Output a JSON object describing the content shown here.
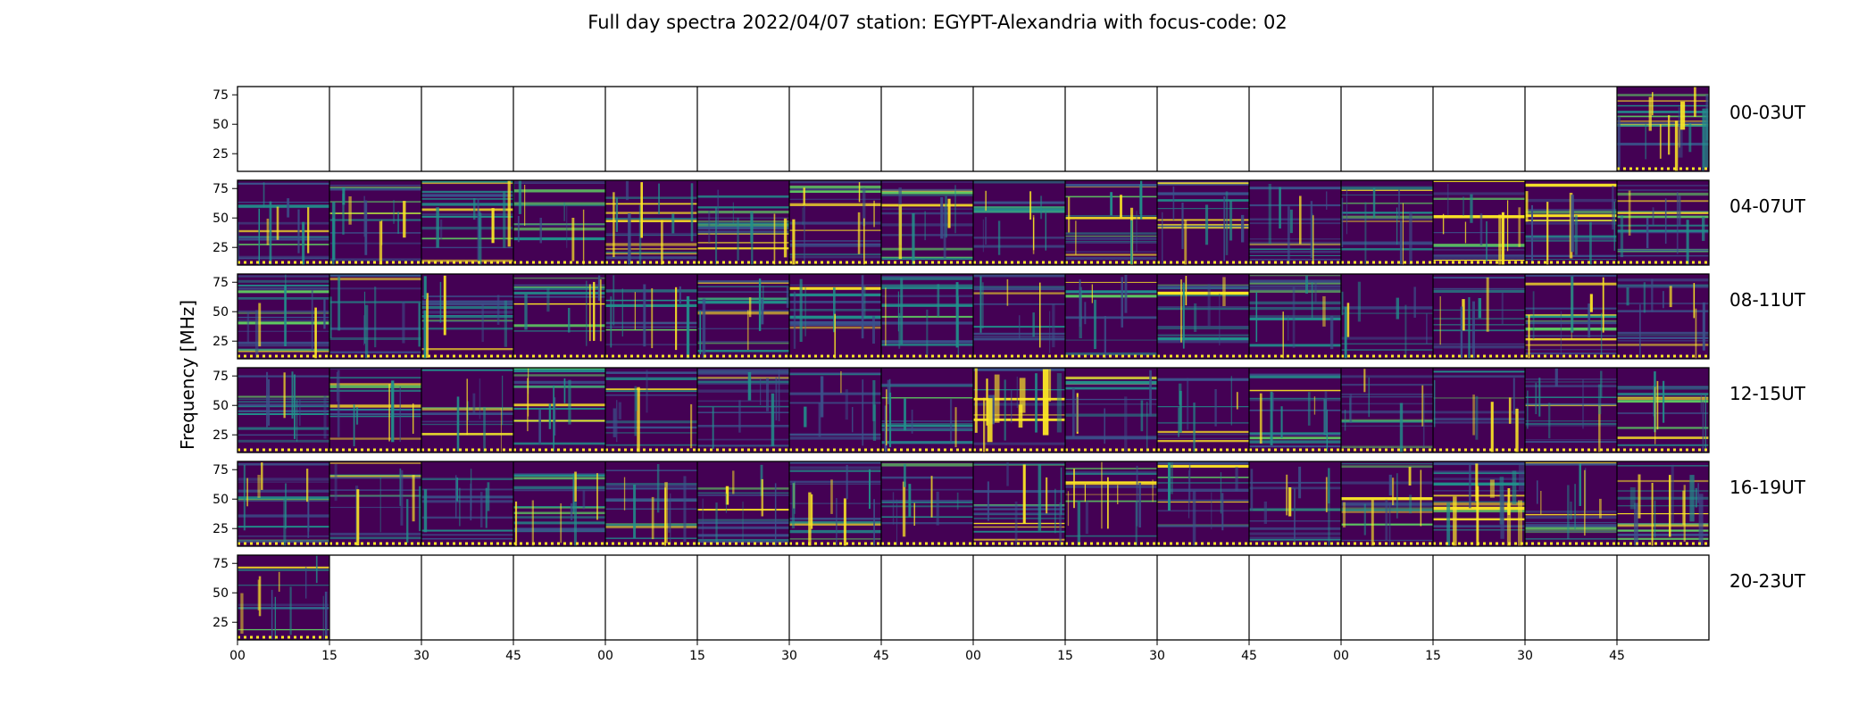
{
  "chart_data": {
    "type": "heatmap",
    "title": "Full day spectra 2022/04/07 station: EGYPT-Alexandria with focus-code: 02",
    "ylabel": "Frequency [MHz]",
    "xlabel": "",
    "y_ticks": [
      "25",
      "50",
      "75"
    ],
    "y_tick_values": [
      25,
      50,
      75
    ],
    "ylim": [
      10,
      82
    ],
    "x_ticks": [
      "00",
      "15",
      "30",
      "45",
      "00",
      "15",
      "30",
      "45",
      "00",
      "15",
      "30",
      "45",
      "00",
      "15",
      "30",
      "45"
    ],
    "x_range_minutes": [
      0,
      240
    ],
    "columns_per_row": 16,
    "column_minutes": 15,
    "colormap": [
      "#440154",
      "#3b528b",
      "#21918c",
      "#5ec962",
      "#fde725"
    ],
    "rows": [
      {
        "label": "00-03UT",
        "panels": [
          0,
          0,
          0,
          0,
          0,
          0,
          0,
          0,
          0,
          0,
          0,
          0,
          0,
          0,
          0,
          1
        ],
        "intensity": [
          0,
          0,
          0,
          0,
          0,
          0,
          0,
          0,
          0,
          0,
          0,
          0,
          0,
          0,
          0,
          0.6
        ]
      },
      {
        "label": "04-07UT",
        "panels": [
          1,
          1,
          1,
          1,
          1,
          1,
          1,
          1,
          1,
          1,
          1,
          1,
          1,
          1,
          1,
          1
        ],
        "intensity": [
          0.35,
          0.45,
          0.3,
          0.3,
          0.35,
          0.3,
          0.3,
          0.25,
          0.3,
          0.3,
          0.25,
          0.25,
          0.25,
          0.4,
          0.3,
          0.25
        ]
      },
      {
        "label": "08-11UT",
        "panels": [
          1,
          1,
          1,
          1,
          1,
          1,
          1,
          1,
          1,
          1,
          1,
          1,
          1,
          1,
          1,
          1
        ],
        "intensity": [
          0.2,
          0.2,
          0.2,
          0.2,
          0.25,
          0.2,
          0.2,
          0.2,
          0.2,
          0.2,
          0.2,
          0.25,
          0.2,
          0.2,
          0.25,
          0.25
        ]
      },
      {
        "label": "12-15UT",
        "panels": [
          1,
          1,
          1,
          1,
          1,
          1,
          1,
          1,
          1,
          1,
          1,
          1,
          1,
          1,
          1,
          1
        ],
        "intensity": [
          0.2,
          0.2,
          0.2,
          0.25,
          0.2,
          0.2,
          0.25,
          0.25,
          0.6,
          0.2,
          0.2,
          0.25,
          0.2,
          0.2,
          0.25,
          0.2
        ]
      },
      {
        "label": "16-19UT",
        "panels": [
          1,
          1,
          1,
          1,
          1,
          1,
          1,
          1,
          1,
          1,
          1,
          1,
          1,
          1,
          1,
          1
        ],
        "intensity": [
          0.3,
          0.25,
          0.3,
          0.3,
          0.3,
          0.3,
          0.4,
          0.3,
          0.3,
          0.45,
          0.3,
          0.3,
          0.4,
          0.5,
          0.3,
          0.5
        ]
      },
      {
        "label": "20-23UT",
        "panels": [
          1,
          0,
          0,
          0,
          0,
          0,
          0,
          0,
          0,
          0,
          0,
          0,
          0,
          0,
          0,
          0
        ],
        "intensity": [
          0.4,
          0,
          0,
          0,
          0,
          0,
          0,
          0,
          0,
          0,
          0,
          0,
          0,
          0,
          0,
          0
        ]
      }
    ]
  }
}
